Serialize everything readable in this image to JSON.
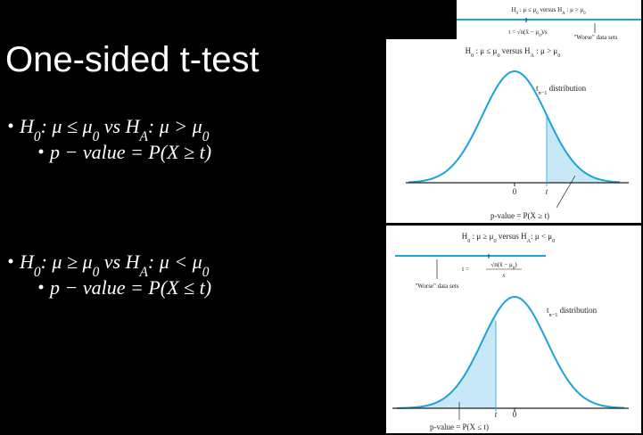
{
  "title": "One-sided t-test",
  "bullets": [
    {
      "hypothesis": [
        "H",
        "0",
        ": μ ≤ μ",
        "0",
        "  vs  H",
        "A",
        ": μ > μ",
        "0"
      ],
      "p_value": [
        "p − value  =  P(X  ≥  t)"
      ]
    },
    {
      "hypothesis": [
        "H",
        "0",
        ": μ ≥ μ",
        "0",
        "  vs  H",
        "A",
        ": μ < μ",
        "0"
      ],
      "p_value": [
        "p − value  =  P(X  ≤  t)"
      ]
    }
  ],
  "figures": [
    {
      "strip_heading": [
        "H",
        "0",
        " : μ ≤ μ",
        "0",
        " versus H",
        "A",
        " : μ > μ",
        "0"
      ],
      "strip_formula": [
        "t = √n(x̄ − μ",
        "0",
        ")/s"
      ],
      "strip_note": "\"Worse\" data sets",
      "heading": [
        "H",
        "0",
        " : μ ≤ μ",
        "0",
        "  versus  H",
        "A",
        " : μ > μ",
        "0"
      ],
      "distribution": [
        "t",
        "n−1",
        " distribution"
      ],
      "zero": "0",
      "t": "t",
      "p_value": "p-value = P(X ≥ t)"
    },
    {
      "heading": [
        "H",
        "0",
        " : μ ≥ μ",
        "0",
        " versus H",
        "A",
        ": μ < μ",
        "0"
      ],
      "formula_lhs": "t =",
      "formula_num": [
        "√n(x̄ − μ",
        "0",
        ")"
      ],
      "formula_den": "s",
      "note": "\"Worse\" data sets",
      "distribution": [
        "t",
        "n−1",
        " distribution"
      ],
      "t": "t",
      "zero": "0",
      "p_value": "p-value = P(X ≤ t)"
    }
  ]
}
